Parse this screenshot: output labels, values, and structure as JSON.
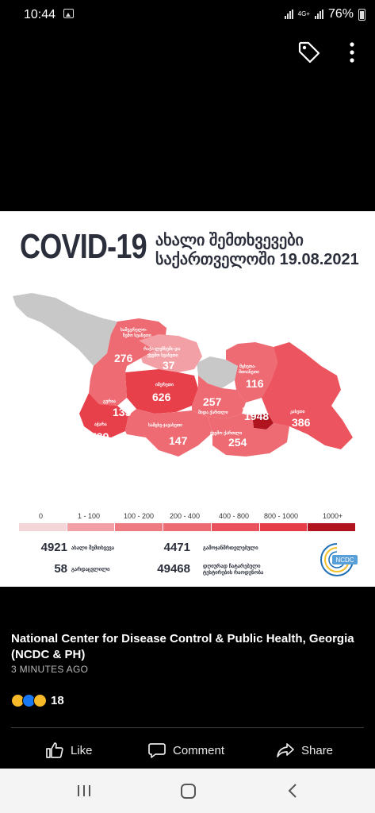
{
  "status_bar": {
    "time": "10:44",
    "network": "4G+",
    "battery": "76%",
    "icons": [
      "gallery-icon",
      "signal-icon",
      "battery-icon"
    ]
  },
  "toolbar": {
    "icons": [
      "tag-icon",
      "more-icon"
    ]
  },
  "infographic": {
    "title": "COVID-19",
    "subtitle_line1": "ახალი შემთხვევები",
    "subtitle_line2": "საქართველოში",
    "date": "19.08.2021",
    "regions": [
      {
        "label_line1": "სამეგრელო-",
        "label_line2": "ზემო სვანეთი",
        "value": "276",
        "color": "#ee6b73"
      },
      {
        "label_line1": "რაჭა-ლეჩხუმი და",
        "label_line2": "ქვემო სვანეთი",
        "value": "37",
        "color": "#f2a0a5"
      },
      {
        "label_line1": "მცხეთა-",
        "label_line2": "მთიანეთი",
        "value": "116",
        "color": "#ee6b73"
      },
      {
        "label_line1": "იმერეთი",
        "label_line2": "",
        "value": "626",
        "color": "#e8404b"
      },
      {
        "label_line1": "გურია",
        "label_line2": "",
        "value": "135",
        "color": "#ee6b73"
      },
      {
        "label_line1": "აჭარა",
        "label_line2": "",
        "value": "739",
        "color": "#e8404b"
      },
      {
        "label_line1": "შიდა ქართლი",
        "label_line2": "",
        "value": "257",
        "color": "#ee6b73"
      },
      {
        "label_line1": "თბილისი",
        "label_line2": "",
        "value": "1948",
        "color": "#b0141f"
      },
      {
        "label_line1": "კახეთი",
        "label_line2": "",
        "value": "386",
        "color": "#ec5560"
      },
      {
        "label_line1": "სამცხე-ჯავახეთი",
        "label_line2": "",
        "value": "147",
        "color": "#ee6b73"
      },
      {
        "label_line1": "ქვემო ქართლი",
        "label_line2": "",
        "value": "254",
        "color": "#ee6b73"
      }
    ],
    "legend": {
      "labels": [
        "0",
        "1 - 100",
        "100 - 200",
        "200 - 400",
        "400 - 800",
        "800 - 1000",
        "1000+"
      ],
      "colors": [
        "#f5d6d8",
        "#f2a0a5",
        "#ee7b82",
        "#ec6a72",
        "#e9525c",
        "#e43d48",
        "#b0141f"
      ]
    },
    "stats": {
      "new_cases_value": "4921",
      "new_cases_label": "ახალი შემთხვევა",
      "recovered_value": "4471",
      "recovered_label": "გამოჯანმრთელებული",
      "deaths_value": "58",
      "deaths_label": "გარდაცვლილი",
      "tests_value": "49468",
      "tests_label_line1": "დღიურად ჩატარებული",
      "tests_label_line2": "ტესტირების რაოდენობა"
    },
    "logo_text": "NCDC"
  },
  "post": {
    "author": "National Center for Disease Control & Public Health, Georgia (NCDC & PH)",
    "time": "3 MINUTES AGO",
    "reaction_count": "18",
    "reaction_icons": [
      "sad-reaction-icon",
      "like-reaction-icon",
      "wow-reaction-icon"
    ]
  },
  "actions": {
    "like": "Like",
    "comment": "Comment",
    "share": "Share"
  },
  "nav": {
    "icons": [
      "recent-apps-icon",
      "home-icon",
      "back-icon"
    ]
  }
}
